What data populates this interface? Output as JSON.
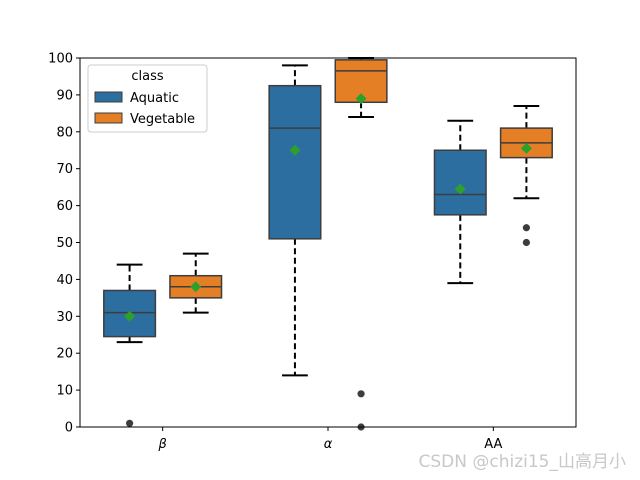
{
  "chart_data": {
    "type": "box",
    "categories": [
      "β",
      "α",
      "AA"
    ],
    "ylim": [
      0,
      100
    ],
    "yticks": [
      0,
      10,
      20,
      30,
      40,
      50,
      60,
      70,
      80,
      90,
      100
    ],
    "xlabel": "",
    "ylabel": "",
    "grid": false,
    "legend": {
      "title": "class",
      "position": "top-left"
    },
    "series": [
      {
        "name": "Aquatic",
        "color": "#2d6ea0",
        "boxes": [
          {
            "category": "β",
            "whisker_low": 23,
            "q1": 24.5,
            "median": 31,
            "q3": 37,
            "whisker_high": 44,
            "mean": 30,
            "outliers": [
              1
            ]
          },
          {
            "category": "α",
            "whisker_low": 14,
            "q1": 51,
            "median": 81,
            "q3": 92.5,
            "whisker_high": 98,
            "mean": 75,
            "outliers": []
          },
          {
            "category": "AA",
            "whisker_low": 39,
            "q1": 57.5,
            "median": 63,
            "q3": 75,
            "whisker_high": 83,
            "mean": 64.5,
            "outliers": []
          }
        ]
      },
      {
        "name": "Vegetable",
        "color": "#e57f26",
        "boxes": [
          {
            "category": "β",
            "whisker_low": 31,
            "q1": 35,
            "median": 38,
            "q3": 41,
            "whisker_high": 47,
            "mean": 38,
            "outliers": []
          },
          {
            "category": "α",
            "whisker_low": 84,
            "q1": 88,
            "median": 96.5,
            "q3": 99.5,
            "whisker_high": 100,
            "mean": 89,
            "outliers": [
              9,
              0
            ]
          },
          {
            "category": "AA",
            "whisker_low": 62,
            "q1": 73,
            "median": 77,
            "q3": 81,
            "whisker_high": 87,
            "mean": 75.5,
            "outliers": [
              54,
              50
            ]
          }
        ]
      }
    ],
    "mean_marker_color": "#2ca02c"
  },
  "watermark": "CSDN @chizi15_山高月小"
}
